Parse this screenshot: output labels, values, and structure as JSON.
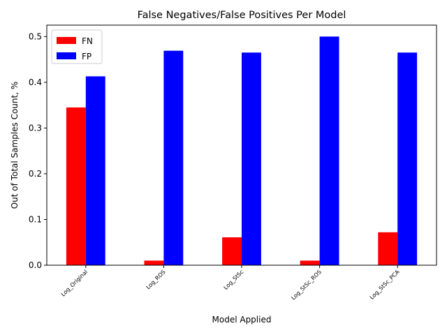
{
  "chart_data": {
    "type": "bar",
    "title": "False Negatives/False Positives Per Model",
    "xlabel": "Model Applied",
    "ylabel": "Out of Total Samples Count, %",
    "categories": [
      "Log_Original",
      "Log_ROS",
      "Log_StSc",
      "Log_StSc_ROS",
      "Log_StSc_PCA"
    ],
    "series": [
      {
        "name": "FN",
        "color": "#ff0000",
        "values": [
          0.345,
          0.01,
          0.061,
          0.01,
          0.072
        ]
      },
      {
        "name": "FP",
        "color": "#0000ff",
        "values": [
          0.413,
          0.469,
          0.465,
          0.5,
          0.465
        ]
      }
    ],
    "ylim": [
      0,
      0.525
    ],
    "yticks": [
      0.0,
      0.1,
      0.2,
      0.3,
      0.4,
      0.5
    ],
    "ytick_labels": [
      "0.0",
      "0.1",
      "0.2",
      "0.3",
      "0.4",
      "0.5"
    ],
    "grid": false,
    "legend": {
      "position": "top-left",
      "entries": [
        "FN",
        "FP"
      ]
    }
  }
}
